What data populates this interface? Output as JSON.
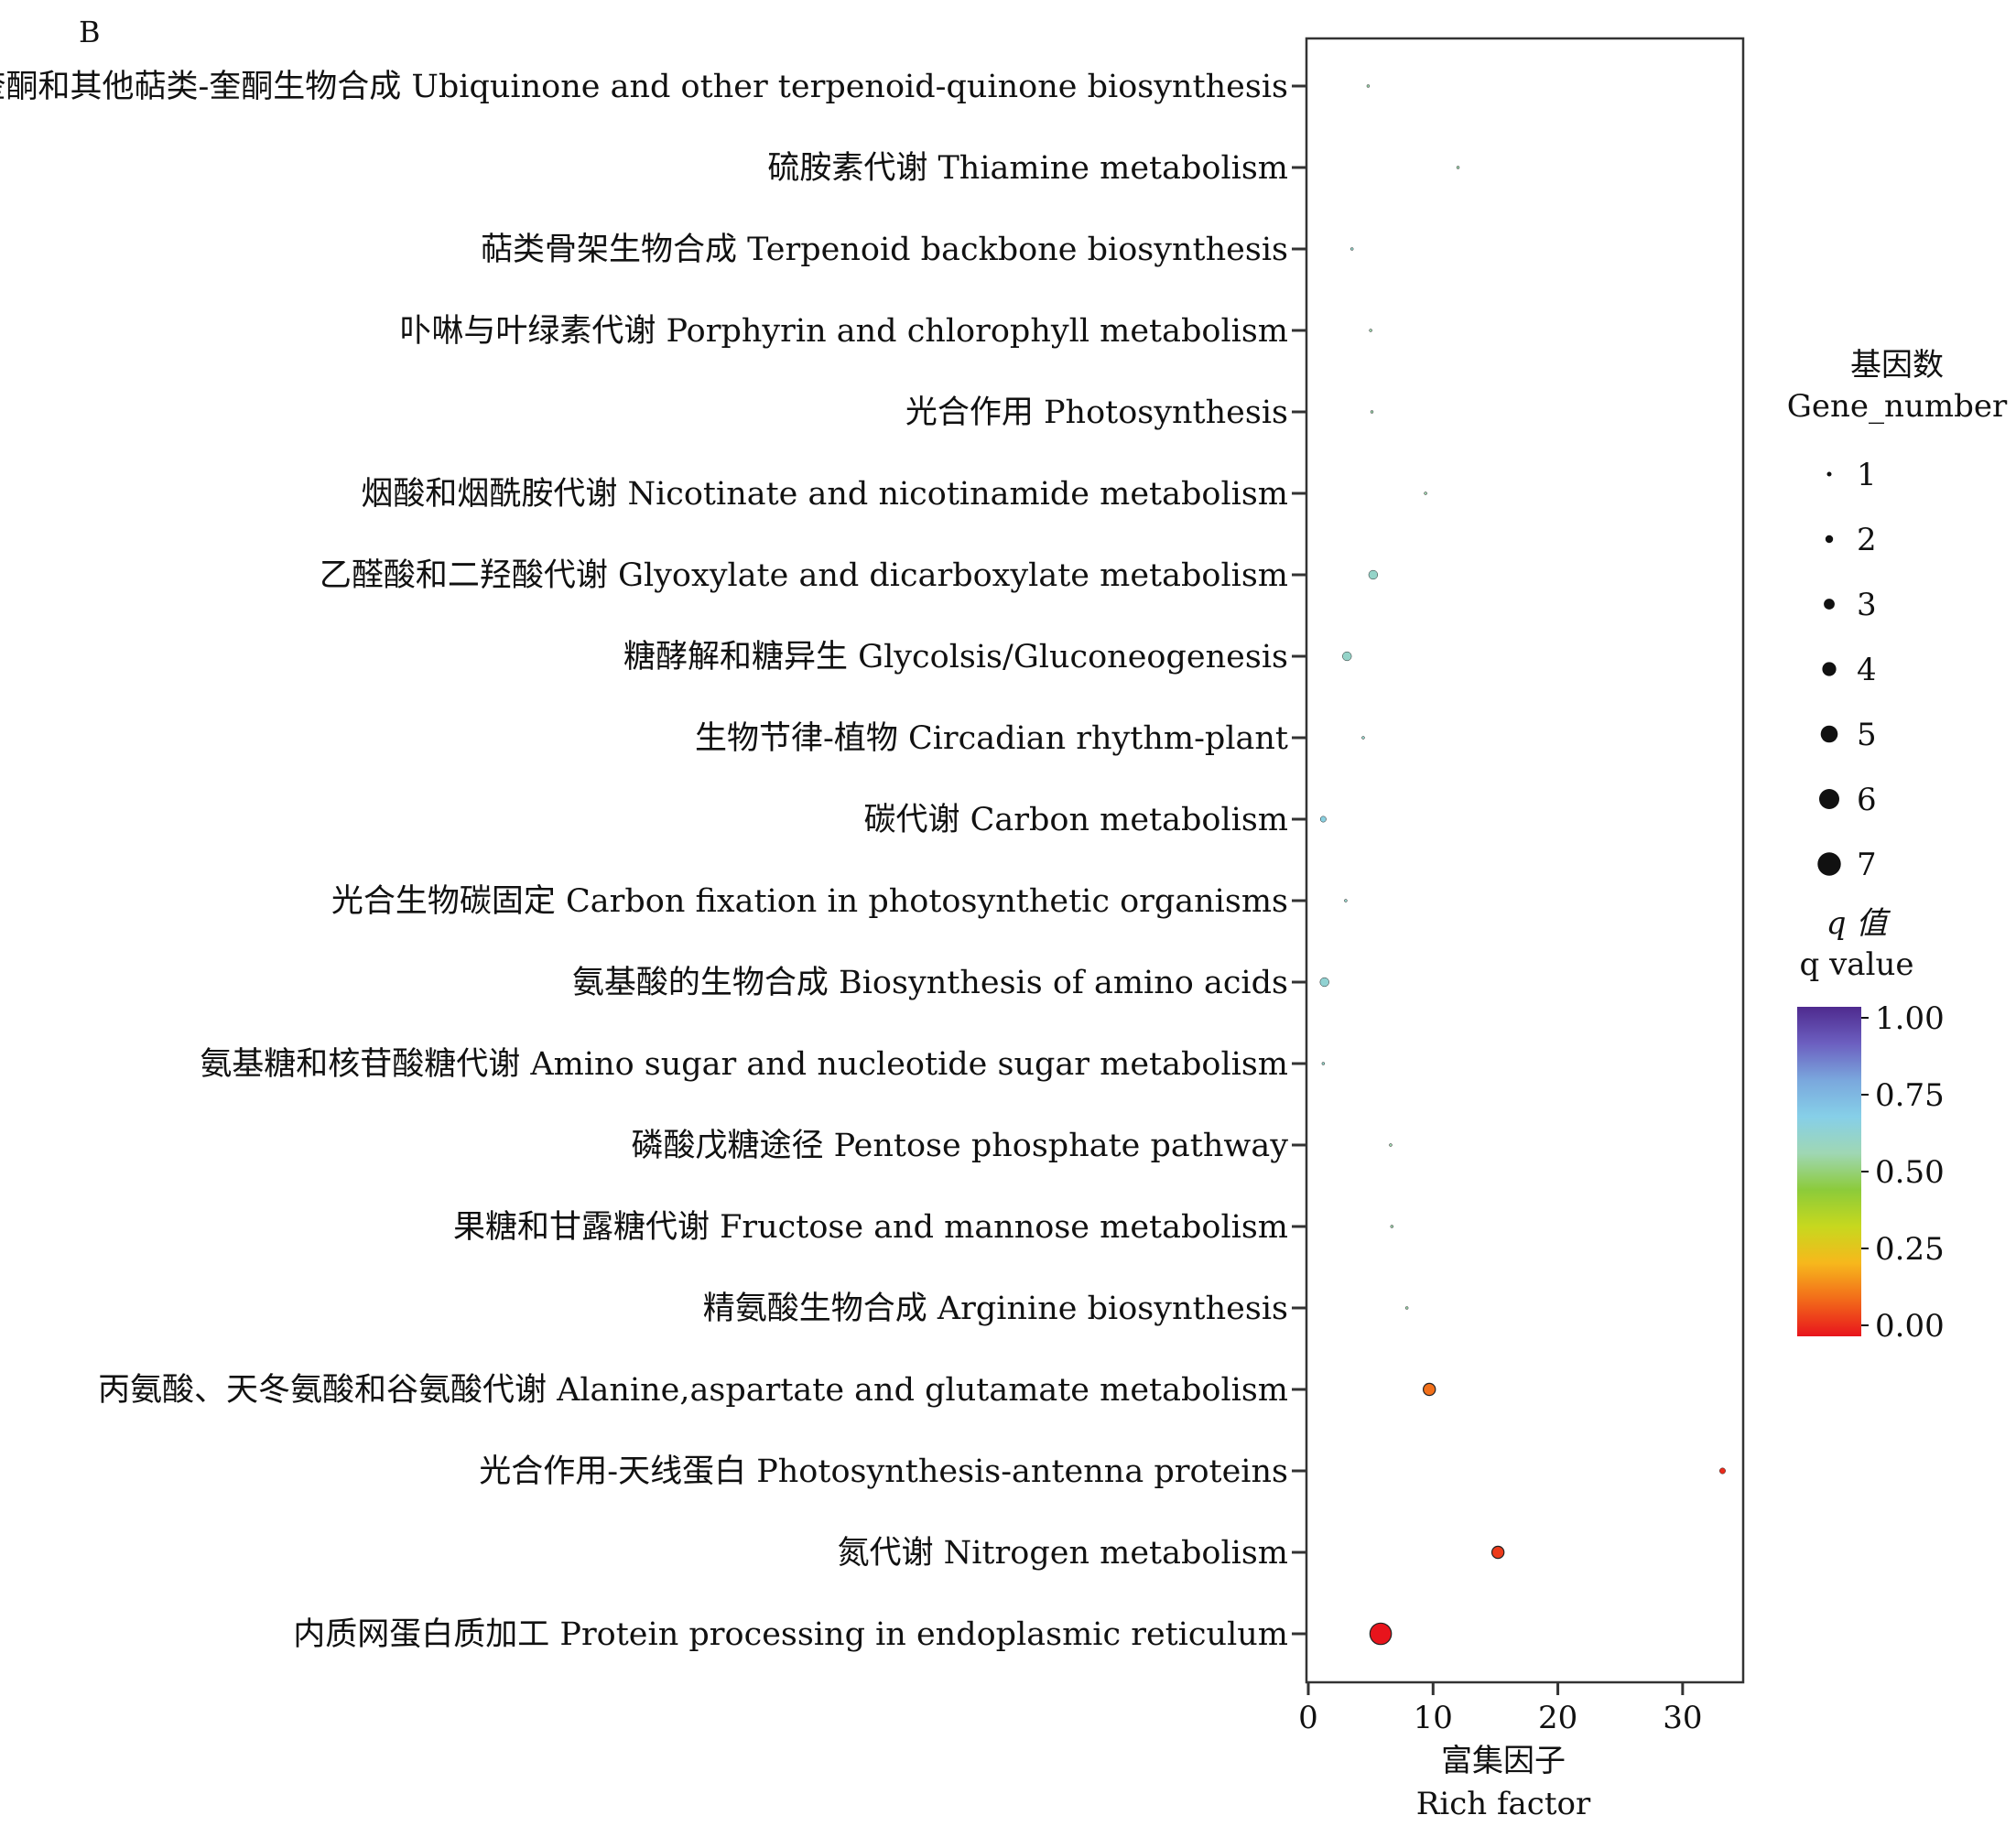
{
  "panel_label": "B",
  "colors": {
    "gradient": [
      "#e8141c",
      "#f26a1a",
      "#f7b81c",
      "#c7d81e",
      "#8ccb3a",
      "#9fd7b4",
      "#86cfe8",
      "#7aa7dd",
      "#6c5fc0",
      "#4e2a8e"
    ],
    "axis": "#333333"
  },
  "chart_data": {
    "type": "scatter",
    "title": "",
    "xlabel_cn": "富集因子",
    "xlabel_en": "Rich factor",
    "xlim": [
      0,
      35
    ],
    "xticks": [
      0,
      10,
      20,
      30
    ],
    "grid": false,
    "size_legend": {
      "title_cn": "基因数",
      "title_en": "Gene_number",
      "values": [
        1,
        2,
        3,
        4,
        5,
        6,
        7
      ]
    },
    "color_legend": {
      "title_cn": "q 值",
      "title_en": "q value",
      "ticks": [
        "1.00",
        "0.75",
        "0.50",
        "0.25",
        "0.00"
      ],
      "range": [
        0,
        1
      ]
    },
    "points": [
      {
        "label": "泛奎酮和其他萜类-奎酮生物合成 Ubiquinone and other terpenoid-quinone biosynthesis",
        "rich_factor": 4.8,
        "gene_number": 1,
        "q_value": 0.55
      },
      {
        "label": "硫胺素代谢 Thiamine metabolism",
        "rich_factor": 12.0,
        "gene_number": 1,
        "q_value": 0.55
      },
      {
        "label": "萜类骨架生物合成 Terpenoid backbone biosynthesis",
        "rich_factor": 3.5,
        "gene_number": 1,
        "q_value": 0.6
      },
      {
        "label": "卟啉与叶绿素代谢 Porphyrin and chlorophyll metabolism",
        "rich_factor": 5.0,
        "gene_number": 1,
        "q_value": 0.55
      },
      {
        "label": "光合作用 Photosynthesis",
        "rich_factor": 5.1,
        "gene_number": 1,
        "q_value": 0.55
      },
      {
        "label": "烟酸和烟酰胺代谢 Nicotinate and nicotinamide metabolism",
        "rich_factor": 9.4,
        "gene_number": 1,
        "q_value": 0.55
      },
      {
        "label": "乙醛酸和二羟酸代谢 Glyoxylate and dicarboxylate metabolism",
        "rich_factor": 5.2,
        "gene_number": 3,
        "q_value": 0.6
      },
      {
        "label": "糖酵解和糖异生 Glycolsis/Gluconeogenesis",
        "rich_factor": 3.1,
        "gene_number": 3,
        "q_value": 0.6
      },
      {
        "label": "生物节律-植物 Circadian rhythm-plant",
        "rich_factor": 4.4,
        "gene_number": 1,
        "q_value": 0.6
      },
      {
        "label": "碳代谢 Carbon metabolism",
        "rich_factor": 1.2,
        "gene_number": 2,
        "q_value": 0.65
      },
      {
        "label": "光合生物碳固定 Carbon fixation in photosynthetic organisms",
        "rich_factor": 3.0,
        "gene_number": 1,
        "q_value": 0.6
      },
      {
        "label": "氨基酸的生物合成 Biosynthesis of amino acids",
        "rich_factor": 1.3,
        "gene_number": 3,
        "q_value": 0.62
      },
      {
        "label": "氨基糖和核苷酸糖代谢 Amino sugar and nucleotide sugar metabolism",
        "rich_factor": 1.2,
        "gene_number": 1,
        "q_value": 0.6
      },
      {
        "label": "磷酸戊糖途径 Pentose phosphate pathway",
        "rich_factor": 6.6,
        "gene_number": 1,
        "q_value": 0.55
      },
      {
        "label": "果糖和甘露糖代谢 Fructose and mannose metabolism",
        "rich_factor": 6.7,
        "gene_number": 1,
        "q_value": 0.55
      },
      {
        "label": "精氨酸生物合成 Arginine biosynthesis",
        "rich_factor": 7.9,
        "gene_number": 1,
        "q_value": 0.55
      },
      {
        "label": "丙氨酸、天冬氨酸和谷氨酸代谢 Alanine,aspartate and glutamate metabolism",
        "rich_factor": 9.7,
        "gene_number": 4,
        "q_value": 0.12
      },
      {
        "label": "光合作用-天线蛋白 Photosynthesis-antenna proteins",
        "rich_factor": 33.2,
        "gene_number": 2,
        "q_value": 0.03
      },
      {
        "label": "氮代谢 Nitrogen metabolism",
        "rich_factor": 15.2,
        "gene_number": 4,
        "q_value": 0.05
      },
      {
        "label": "内质网蛋白质加工 Protein processing in endoplasmic reticulum",
        "rich_factor": 5.8,
        "gene_number": 7,
        "q_value": 0.0
      }
    ]
  }
}
